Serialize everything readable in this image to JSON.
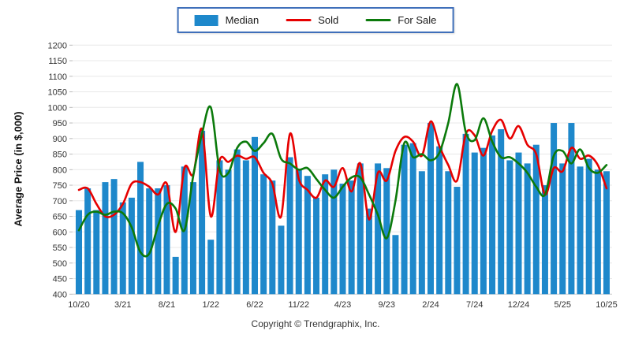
{
  "legend": {
    "items": [
      {
        "label": "Median",
        "type": "bar",
        "color": "#1e88cb"
      },
      {
        "label": "Sold",
        "type": "line",
        "color": "#e60000"
      },
      {
        "label": "For Sale",
        "type": "line",
        "color": "#0b7a0b"
      }
    ]
  },
  "y_axis": {
    "title": "Average Price (in $,000)"
  },
  "footer": {
    "copyright": "Copyright © Trendgraphix, Inc."
  },
  "chart_data": {
    "type": "bar+line",
    "title": "",
    "xlabel": "",
    "ylabel": "Average Price (in $,000)",
    "ylim": [
      400,
      1200
    ],
    "ytick_step": 50,
    "grid": true,
    "legend_position": "top-center",
    "categories": [
      "10/20",
      "11/20",
      "12/20",
      "1/21",
      "2/21",
      "3/21",
      "4/21",
      "5/21",
      "6/21",
      "7/21",
      "8/21",
      "9/21",
      "10/21",
      "11/21",
      "12/21",
      "1/22",
      "2/22",
      "3/22",
      "4/22",
      "5/22",
      "6/22",
      "7/22",
      "8/22",
      "9/22",
      "10/22",
      "11/22",
      "12/22",
      "1/23",
      "2/23",
      "3/23",
      "4/23",
      "5/23",
      "6/23",
      "7/23",
      "8/23",
      "9/23",
      "10/23",
      "11/23",
      "12/23",
      "1/24",
      "2/24",
      "3/24",
      "4/24",
      "5/24",
      "6/24",
      "7/24",
      "8/24",
      "9/24",
      "10/24",
      "11/24",
      "12/24",
      "1/25",
      "2/25",
      "3/25",
      "4/25",
      "5/25",
      "6/25",
      "7/25",
      "8/25",
      "9/25",
      "10/25"
    ],
    "x_ticks_shown": [
      "10/20",
      "3/21",
      "8/21",
      "1/22",
      "6/22",
      "11/22",
      "4/23",
      "9/23",
      "2/24",
      "7/24",
      "12/24",
      "5/25",
      "10/25"
    ],
    "series": [
      {
        "name": "Median",
        "type": "bar",
        "color": "#1e88cb",
        "values": [
          670,
          740,
          670,
          760,
          770,
          695,
          710,
          825,
          740,
          740,
          750,
          520,
          810,
          760,
          925,
          575,
          830,
          800,
          865,
          830,
          905,
          785,
          765,
          620,
          840,
          800,
          780,
          710,
          785,
          800,
          755,
          765,
          820,
          675,
          820,
          805,
          590,
          880,
          885,
          795,
          950,
          875,
          795,
          745,
          915,
          855,
          870,
          910,
          930,
          830,
          855,
          820,
          880,
          750,
          950,
          820,
          950,
          810,
          835,
          800,
          795
        ]
      },
      {
        "name": "Sold",
        "type": "line",
        "color": "#e60000",
        "values": [
          735,
          740,
          690,
          650,
          655,
          690,
          755,
          760,
          745,
          720,
          755,
          600,
          805,
          785,
          930,
          650,
          830,
          825,
          845,
          835,
          840,
          790,
          755,
          650,
          915,
          770,
          735,
          710,
          765,
          745,
          805,
          730,
          820,
          640,
          790,
          765,
          860,
          905,
          890,
          845,
          955,
          875,
          815,
          765,
          915,
          910,
          845,
          925,
          960,
          900,
          940,
          880,
          850,
          720,
          805,
          795,
          870,
          835,
          845,
          815,
          740
        ]
      },
      {
        "name": "For Sale",
        "type": "line",
        "color": "#0b7a0b",
        "values": [
          605,
          655,
          665,
          655,
          665,
          660,
          615,
          535,
          530,
          620,
          690,
          675,
          605,
          780,
          915,
          1000,
          800,
          790,
          870,
          890,
          860,
          885,
          915,
          835,
          820,
          800,
          805,
          770,
          735,
          710,
          745,
          775,
          775,
          720,
          655,
          580,
          700,
          885,
          840,
          850,
          830,
          855,
          950,
          1075,
          920,
          895,
          965,
          890,
          840,
          840,
          820,
          790,
          745,
          720,
          845,
          860,
          820,
          865,
          805,
          790,
          815
        ]
      }
    ]
  }
}
